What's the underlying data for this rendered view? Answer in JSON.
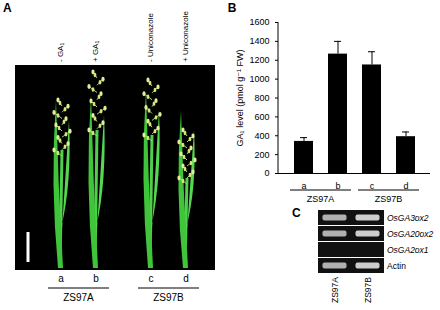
{
  "chart_data": {
    "type": "bar",
    "title": "B",
    "categories": [
      "a",
      "b",
      "c",
      "d"
    ],
    "values": [
      340,
      1265,
      1150,
      390
    ],
    "errors": [
      40,
      135,
      140,
      50
    ],
    "color": "#000000",
    "ylabel": "GA₁ level (pmol g⁻¹ FW)",
    "ylim": [
      0,
      1600
    ],
    "yticks": [
      0,
      200,
      400,
      600,
      800,
      1000,
      1200,
      1400,
      1600
    ],
    "groups": [
      {
        "label": "ZS97A",
        "categories": [
          "a",
          "b"
        ]
      },
      {
        "label": "ZS97B",
        "categories": [
          "c",
          "d"
        ]
      }
    ]
  },
  "panel_a": {
    "label": "A",
    "treatments": [
      "- GA₁",
      "+ GA₁",
      "- Uniconazole",
      "+ Uniconazole"
    ],
    "plants": [
      "a",
      "b",
      "c",
      "d"
    ],
    "groups": [
      {
        "label": "ZS97A",
        "plants": [
          "a",
          "b"
        ]
      },
      {
        "label": "ZS97B",
        "plants": [
          "c",
          "d"
        ]
      }
    ]
  },
  "panel_c": {
    "label": "C",
    "lanes": [
      "ZS97A",
      "ZS97B"
    ],
    "genes": [
      {
        "name": "OsGA3ox2",
        "bands": [
          true,
          true
        ]
      },
      {
        "name": "OsGA20ox2",
        "bands": [
          true,
          true
        ]
      },
      {
        "name": "OsGA2ox1",
        "bands": [
          false,
          false
        ]
      },
      {
        "name": "Actin",
        "bands": [
          true,
          true
        ]
      }
    ]
  }
}
